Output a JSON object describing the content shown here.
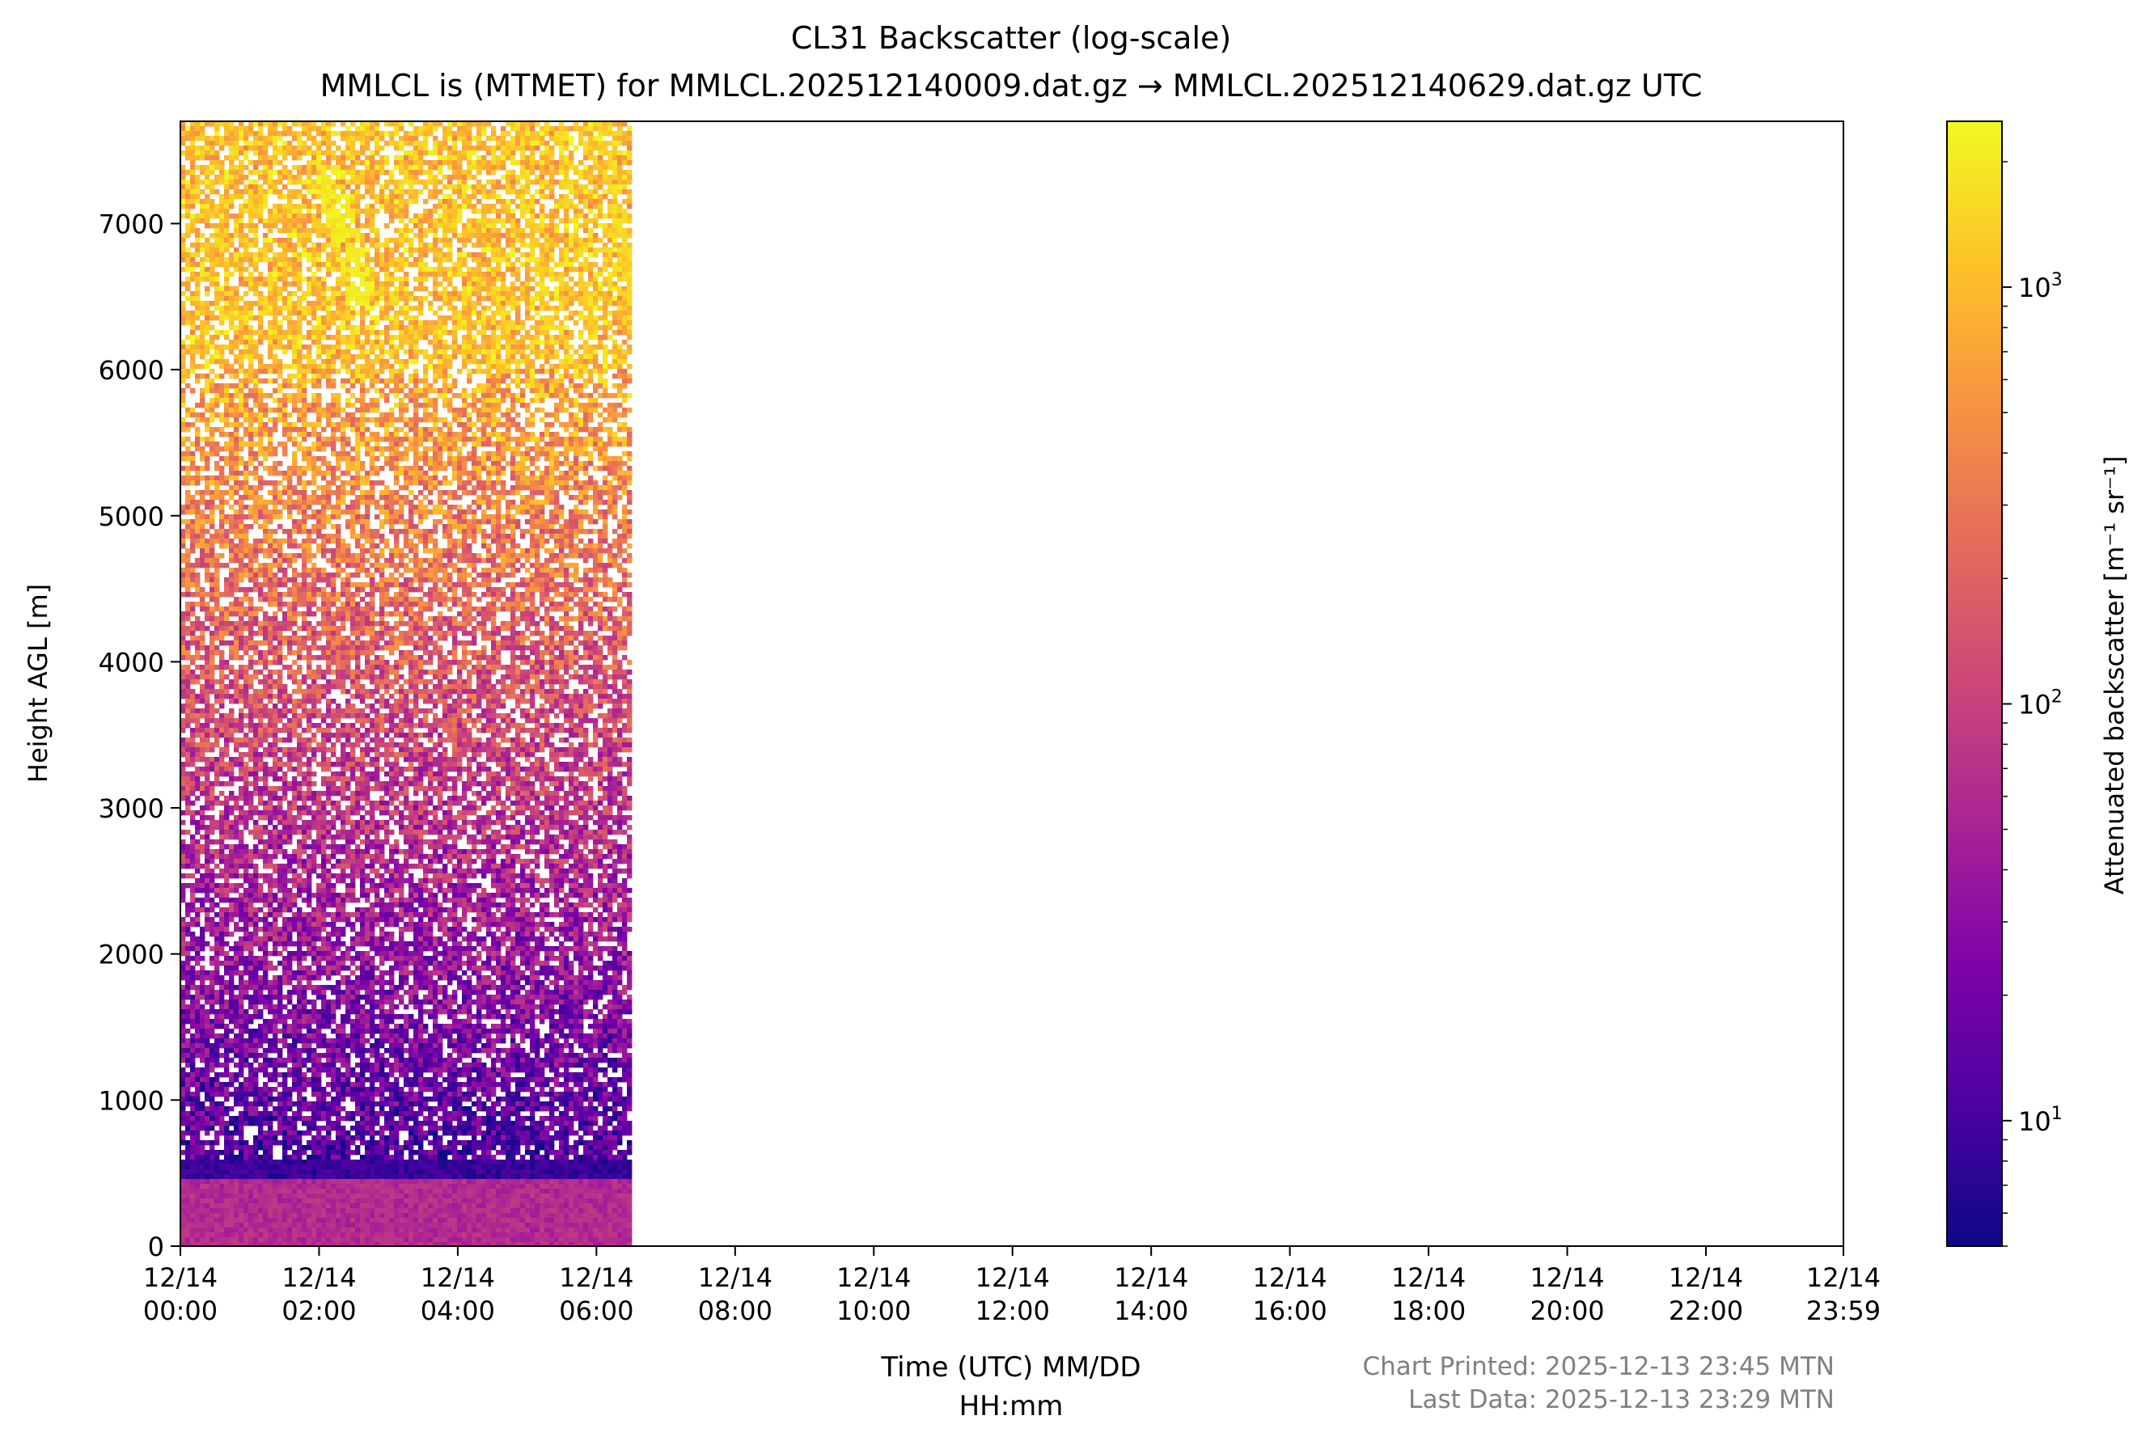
{
  "chart_data": {
    "type": "heatmap",
    "title": "CL31 Backscatter (log-scale)",
    "subtitle": "MMLCL is (MTMET) for MMLCL.202512140009.dat.gz → MMLCL.202512140629.dat.gz UTC",
    "xlabel_line1": "Time (UTC) MM/DD",
    "xlabel_line2": "HH:mm",
    "ylabel": "Height AGL [m]",
    "colorbar_label": "Attenuated backscatter [m⁻¹ sr⁻¹]",
    "colormap": "plasma",
    "color_scale": "log",
    "color_range": [
      5,
      2500
    ],
    "colorbar_ticks": [
      {
        "base": "10",
        "exp": "1",
        "value": 10
      },
      {
        "base": "10",
        "exp": "2",
        "value": 100
      },
      {
        "base": "10",
        "exp": "3",
        "value": 1000
      }
    ],
    "ylim": [
      0,
      7700
    ],
    "yticks": [
      "0",
      "1000",
      "2000",
      "3000",
      "4000",
      "5000",
      "6000",
      "7000"
    ],
    "ytick_values": [
      0,
      1000,
      2000,
      3000,
      4000,
      5000,
      6000,
      7000
    ],
    "xlim_hours": [
      0,
      23.983
    ],
    "xticks": [
      {
        "date": "12/14",
        "time": "00:00",
        "hour": 0
      },
      {
        "date": "12/14",
        "time": "02:00",
        "hour": 2
      },
      {
        "date": "12/14",
        "time": "04:00",
        "hour": 4
      },
      {
        "date": "12/14",
        "time": "06:00",
        "hour": 6
      },
      {
        "date": "12/14",
        "time": "08:00",
        "hour": 8
      },
      {
        "date": "12/14",
        "time": "10:00",
        "hour": 10
      },
      {
        "date": "12/14",
        "time": "12:00",
        "hour": 12
      },
      {
        "date": "12/14",
        "time": "14:00",
        "hour": 14
      },
      {
        "date": "12/14",
        "time": "16:00",
        "hour": 16
      },
      {
        "date": "12/14",
        "time": "18:00",
        "hour": 18
      },
      {
        "date": "12/14",
        "time": "20:00",
        "hour": 20
      },
      {
        "date": "12/14",
        "time": "22:00",
        "hour": 22
      },
      {
        "date": "12/14",
        "time": "23:59",
        "hour": 23.983
      }
    ],
    "data_extent_hours": [
      0,
      6.5
    ],
    "features": [
      {
        "height_range_m": [
          0,
          450
        ],
        "backscatter": 60
      },
      {
        "height_range_m": [
          450,
          600
        ],
        "backscatter": 8
      },
      {
        "height_range_m": [
          600,
          6000
        ],
        "backscatter_range": [
          12,
          800
        ]
      },
      {
        "height_range_m": [
          6000,
          7700
        ],
        "backscatter_range": [
          700,
          1500
        ]
      },
      {
        "time_range_hours": [
          1.95,
          2.75
        ],
        "height_range_m": [
          6400,
          7400
        ],
        "backscatter": 2200
      },
      {
        "time_range_hours": [
          4.5,
          6.5
        ],
        "height_range_m": [
          6200,
          7700
        ],
        "backscatter": 1600
      }
    ],
    "grid": false,
    "legend": "none"
  },
  "footer": {
    "printed": "Chart Printed: 2025-12-13 23:45 MTN",
    "last_data": "Last Data: 2025-12-13 23:29 MTN"
  }
}
